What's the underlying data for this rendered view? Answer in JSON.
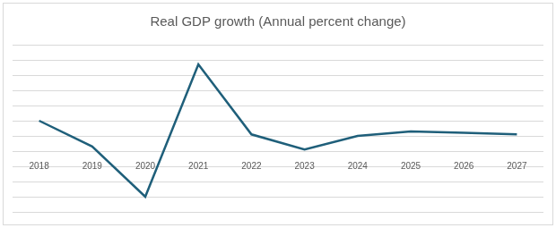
{
  "chart_data": {
    "type": "line",
    "title": "Real GDP growth (Annual percent change)",
    "categories": [
      "2018",
      "2019",
      "2020",
      "2021",
      "2022",
      "2023",
      "2024",
      "2025",
      "2026",
      "2027"
    ],
    "values": [
      2.0,
      0.3,
      -3.0,
      5.7,
      1.1,
      0.1,
      1.0,
      1.3,
      1.2,
      1.1
    ],
    "color": "#1f5f7a",
    "ylim": [
      -4,
      7
    ],
    "yticks": [
      -4,
      -3,
      -2,
      -1,
      0,
      1,
      2,
      3,
      4,
      5,
      6,
      7
    ],
    "grid": true,
    "tick_labels": "x"
  }
}
